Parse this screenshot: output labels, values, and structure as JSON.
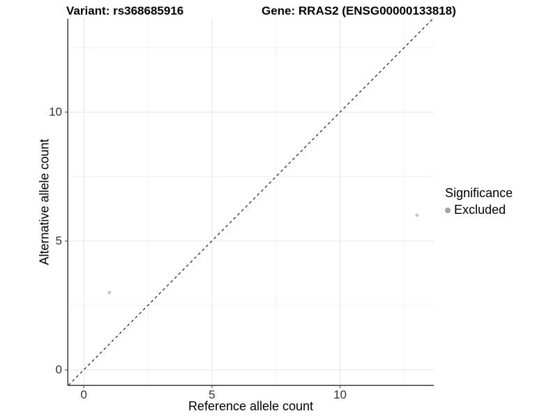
{
  "chart_data": {
    "type": "scatter",
    "title_left": "Variant: rs368685916",
    "title_right": "Gene: RRAS2 (ENSG00000133818)",
    "xlabel": "Reference allele count",
    "ylabel": "Alternative allele count",
    "x_axis": {
      "min": -0.63,
      "max": 13.66,
      "major_ticks": [
        0,
        5,
        10
      ],
      "minor_ticks": [
        2.5,
        7.5,
        12.5
      ]
    },
    "y_axis": {
      "min": -0.6,
      "max": 13.62,
      "major_ticks": [
        0,
        5,
        10
      ],
      "minor_ticks": [
        2.5,
        7.5,
        12.5
      ]
    },
    "points": [
      {
        "x": 1,
        "y": 3,
        "series": "Excluded"
      },
      {
        "x": 13,
        "y": 6,
        "series": "Excluded"
      }
    ],
    "identity_line": {
      "style": "dashed",
      "equation": "y = x"
    },
    "grid": "major and minor, light gray on white",
    "legend": {
      "title": "Significance",
      "position": "right",
      "entries": [
        {
          "label": "Excluded",
          "color": "#a3a3a3"
        }
      ]
    },
    "colors": {
      "background": "#ffffff",
      "point": "#c2c2c2",
      "legend_key": "#a3a3a3",
      "grid_major": "#e6e6e6",
      "grid_minor": "#f2f2f2",
      "axis_line": "#3c3c3c",
      "dashed_line": "#1a1a1a",
      "tick_text": "#333333",
      "title_text": "#000000"
    }
  }
}
